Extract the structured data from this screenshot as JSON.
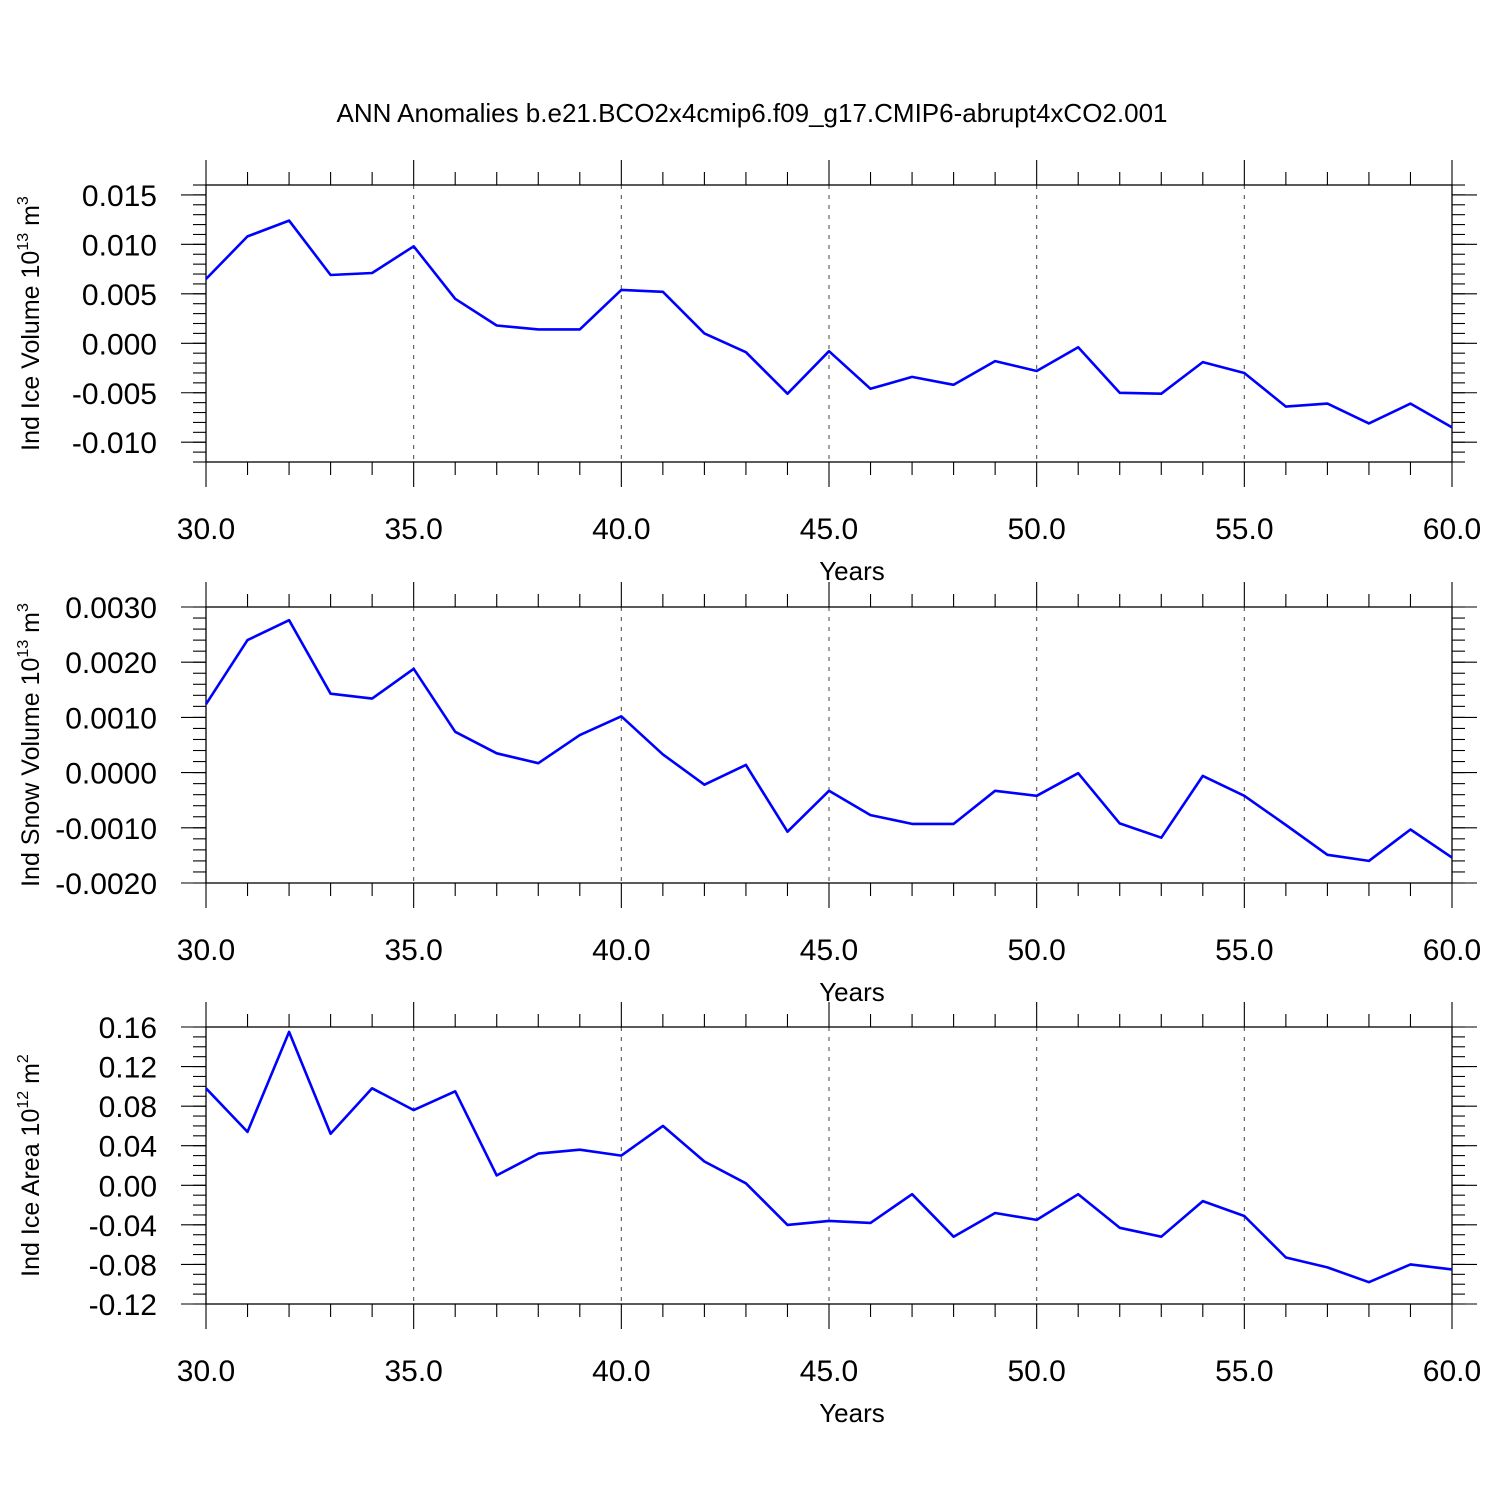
{
  "title": "ANN Anomalies b.e21.BCO2x4cmip6.f09_g17.CMIP6-abrupt4xCO2.001",
  "line_color": "#0000ff",
  "chart_data": [
    {
      "type": "line",
      "ylabel": {
        "text": "Ind Ice Volume 10",
        "exp": "13",
        "unit": " m",
        "unit_exp": "3"
      },
      "xlabel": "Years",
      "xlim": [
        30,
        60
      ],
      "x_ticks": [
        30,
        35,
        40,
        45,
        50,
        55,
        60
      ],
      "x_tick_labels": [
        "30.0",
        "35.0",
        "40.0",
        "45.0",
        "50.0",
        "55.0",
        "60.0"
      ],
      "grid": "vertical dashed at major x ticks",
      "ylim": [
        -0.012,
        0.016
      ],
      "y_ticks": [
        0.015,
        0.01,
        0.005,
        0.0,
        -0.005,
        -0.01
      ],
      "y_tick_labels": [
        "0.015",
        "0.010",
        "0.005",
        "0.000",
        "-0.005",
        "-0.010"
      ],
      "y_minor_step": 0.001,
      "x": [
        30,
        31,
        32,
        33,
        34,
        35,
        36,
        37,
        38,
        39,
        40,
        41,
        42,
        43,
        44,
        45,
        46,
        47,
        48,
        49,
        50,
        51,
        52,
        53,
        54,
        55,
        56,
        57,
        58,
        59,
        60
      ],
      "series": [
        {
          "name": "Ind Ice Volume",
          "values": [
            0.0065,
            0.0108,
            0.0124,
            0.0069,
            0.0071,
            0.0098,
            0.0045,
            0.0018,
            0.0014,
            0.0014,
            0.0054,
            0.0052,
            0.001,
            -0.0009,
            -0.0051,
            -0.0008,
            -0.0046,
            -0.0034,
            -0.0042,
            -0.0018,
            -0.0028,
            -0.0004,
            -0.005,
            -0.0051,
            -0.0019,
            -0.003,
            -0.0064,
            -0.0061,
            -0.0081,
            -0.0061,
            -0.0085
          ]
        }
      ]
    },
    {
      "type": "line",
      "ylabel": {
        "text": "Ind Snow Volume 10",
        "exp": "13",
        "unit": " m",
        "unit_exp": "3"
      },
      "xlabel": "Years",
      "xlim": [
        30,
        60
      ],
      "x_ticks": [
        30,
        35,
        40,
        45,
        50,
        55,
        60
      ],
      "x_tick_labels": [
        "30.0",
        "35.0",
        "40.0",
        "45.0",
        "50.0",
        "55.0",
        "60.0"
      ],
      "grid": "vertical dashed at major x ticks",
      "ylim": [
        -0.002,
        0.003
      ],
      "y_ticks": [
        0.003,
        0.002,
        0.001,
        0.0,
        -0.001,
        -0.002
      ],
      "y_tick_labels": [
        "0.0030",
        "0.0020",
        "0.0010",
        "0.0000",
        "-0.0010",
        "-0.0020"
      ],
      "y_minor_step": 0.0002,
      "x": [
        30,
        31,
        32,
        33,
        34,
        35,
        36,
        37,
        38,
        39,
        40,
        41,
        42,
        43,
        44,
        45,
        46,
        47,
        48,
        49,
        50,
        51,
        52,
        53,
        54,
        55,
        56,
        57,
        58,
        59,
        60
      ],
      "series": [
        {
          "name": "Ind Snow Volume",
          "values": [
            0.00124,
            0.0024,
            0.00276,
            0.00143,
            0.00134,
            0.00188,
            0.00074,
            0.00035,
            0.00017,
            0.00068,
            0.00102,
            0.00033,
            -0.00022,
            0.00014,
            -0.00107,
            -0.00033,
            -0.00077,
            -0.00093,
            -0.00093,
            -0.00033,
            -0.00042,
            -1e-05,
            -0.00092,
            -0.00118,
            -6e-05,
            -0.00042,
            -0.00095,
            -0.00149,
            -0.0016,
            -0.00103,
            -0.00154
          ]
        }
      ]
    },
    {
      "type": "line",
      "ylabel": {
        "text": "Ind Ice Area 10",
        "exp": "12",
        "unit": " m",
        "unit_exp": "2"
      },
      "xlabel": "Years",
      "xlim": [
        30,
        60
      ],
      "x_ticks": [
        30,
        35,
        40,
        45,
        50,
        55,
        60
      ],
      "x_tick_labels": [
        "30.0",
        "35.0",
        "40.0",
        "45.0",
        "50.0",
        "55.0",
        "60.0"
      ],
      "grid": "vertical dashed at major x ticks",
      "ylim": [
        -0.12,
        0.16
      ],
      "y_ticks": [
        0.16,
        0.12,
        0.08,
        0.04,
        0.0,
        -0.04,
        -0.08,
        -0.12
      ],
      "y_tick_labels": [
        "0.16",
        "0.12",
        "0.08",
        "0.04",
        "0.00",
        "-0.04",
        "-0.08",
        "-0.12"
      ],
      "y_minor_step": 0.01,
      "x": [
        30,
        31,
        32,
        33,
        34,
        35,
        36,
        37,
        38,
        39,
        40,
        41,
        42,
        43,
        44,
        45,
        46,
        47,
        48,
        49,
        50,
        51,
        52,
        53,
        54,
        55,
        56,
        57,
        58,
        59,
        60
      ],
      "series": [
        {
          "name": "Ind Ice Area",
          "values": [
            0.098,
            0.054,
            0.155,
            0.052,
            0.098,
            0.076,
            0.095,
            0.01,
            0.032,
            0.036,
            0.03,
            0.06,
            0.024,
            0.002,
            -0.04,
            -0.036,
            -0.038,
            -0.009,
            -0.052,
            -0.028,
            -0.035,
            -0.009,
            -0.043,
            -0.052,
            -0.016,
            -0.031,
            -0.073,
            -0.083,
            -0.098,
            -0.08,
            -0.085
          ]
        }
      ]
    }
  ]
}
